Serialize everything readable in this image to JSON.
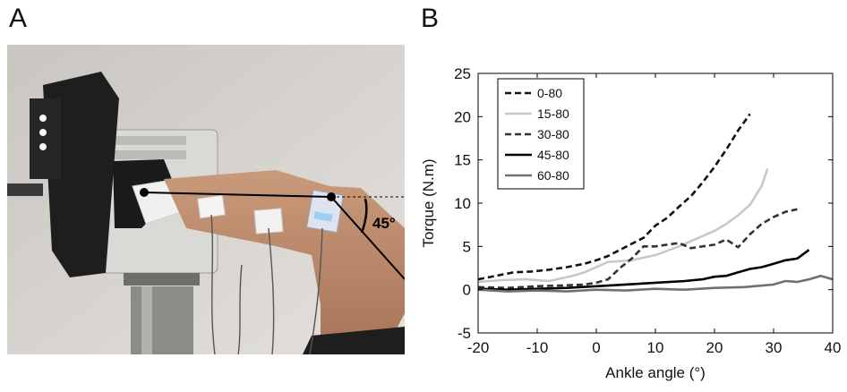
{
  "panels": {
    "a_label": "A",
    "b_label": "B"
  },
  "photo": {
    "angle_annotation": "45°"
  },
  "colors": {
    "0-80": "#111111",
    "15-80": "#c8c8c8",
    "30-80": "#333333",
    "45-80": "#000000",
    "60-80": "#707070"
  },
  "chart_data": {
    "type": "line",
    "xlabel": "Ankle angle (°)",
    "ylabel": "Torque (N.m)",
    "xlim": [
      -20,
      40
    ],
    "ylim": [
      -5,
      25
    ],
    "x_ticks": [
      "-20",
      "-10",
      "0",
      "10",
      "20",
      "30",
      "40"
    ],
    "y_ticks": [
      "-5",
      "0",
      "5",
      "10",
      "15",
      "20",
      "25"
    ],
    "x_tick_values": [
      -20,
      -10,
      0,
      10,
      20,
      30,
      40
    ],
    "y_tick_values": [
      -5,
      0,
      5,
      10,
      15,
      20,
      25
    ],
    "grid": false,
    "legend_position": "top-left",
    "series": [
      {
        "name": "0-80",
        "style": "dashed",
        "x": [
          -20,
          -17,
          -14,
          -11,
          -8,
          -5,
          -2,
          0,
          2,
          4,
          6,
          8,
          10,
          12,
          14,
          16,
          18,
          20,
          22,
          24,
          26
        ],
        "y": [
          1.2,
          1.6,
          2.0,
          2.1,
          2.3,
          2.6,
          3.0,
          3.4,
          3.9,
          4.6,
          5.3,
          6.0,
          7.4,
          8.3,
          9.6,
          10.8,
          12.4,
          14.2,
          16.2,
          18.4,
          20.3
        ]
      },
      {
        "name": "15-80",
        "style": "solid",
        "x": [
          -20,
          -16,
          -12,
          -8,
          -4,
          -2,
          0,
          2,
          4,
          6,
          8,
          10,
          12,
          14,
          16,
          18,
          20,
          22,
          24,
          26,
          28,
          29
        ],
        "y": [
          0.9,
          1.1,
          1.2,
          1.0,
          1.6,
          2.0,
          2.6,
          3.2,
          3.3,
          3.4,
          3.7,
          4.0,
          4.5,
          5.0,
          5.6,
          6.2,
          6.8,
          7.6,
          8.6,
          9.8,
          12.0,
          14.0
        ]
      },
      {
        "name": "30-80",
        "style": "dashed",
        "x": [
          -20,
          -15,
          -10,
          -5,
          -2,
          0,
          2,
          4,
          6,
          8,
          10,
          12,
          14,
          16,
          18,
          20,
          22,
          24,
          26,
          28,
          30,
          32,
          34
        ],
        "y": [
          0.3,
          0.2,
          0.4,
          0.5,
          0.6,
          0.8,
          1.2,
          2.5,
          3.6,
          5.0,
          5.0,
          5.2,
          5.4,
          4.8,
          5.0,
          5.2,
          5.8,
          4.9,
          6.4,
          7.6,
          8.4,
          9.0,
          9.3
        ]
      },
      {
        "name": "45-80",
        "style": "solid",
        "x": [
          -20,
          -15,
          -10,
          -5,
          0,
          5,
          10,
          15,
          18,
          20,
          22,
          24,
          26,
          28,
          30,
          32,
          34,
          36
        ],
        "y": [
          0.1,
          0.0,
          0.1,
          0.2,
          0.4,
          0.6,
          0.8,
          1.0,
          1.2,
          1.5,
          1.6,
          2.0,
          2.4,
          2.6,
          3.0,
          3.4,
          3.6,
          4.6
        ]
      },
      {
        "name": "60-80",
        "style": "solid",
        "x": [
          -20,
          -15,
          -10,
          -5,
          0,
          5,
          10,
          15,
          20,
          25,
          30,
          32,
          34,
          36,
          38,
          40
        ],
        "y": [
          0.0,
          -0.2,
          -0.1,
          -0.2,
          0.0,
          -0.1,
          0.1,
          0.0,
          0.2,
          0.3,
          0.6,
          1.0,
          0.9,
          1.2,
          1.6,
          1.2
        ]
      }
    ]
  }
}
